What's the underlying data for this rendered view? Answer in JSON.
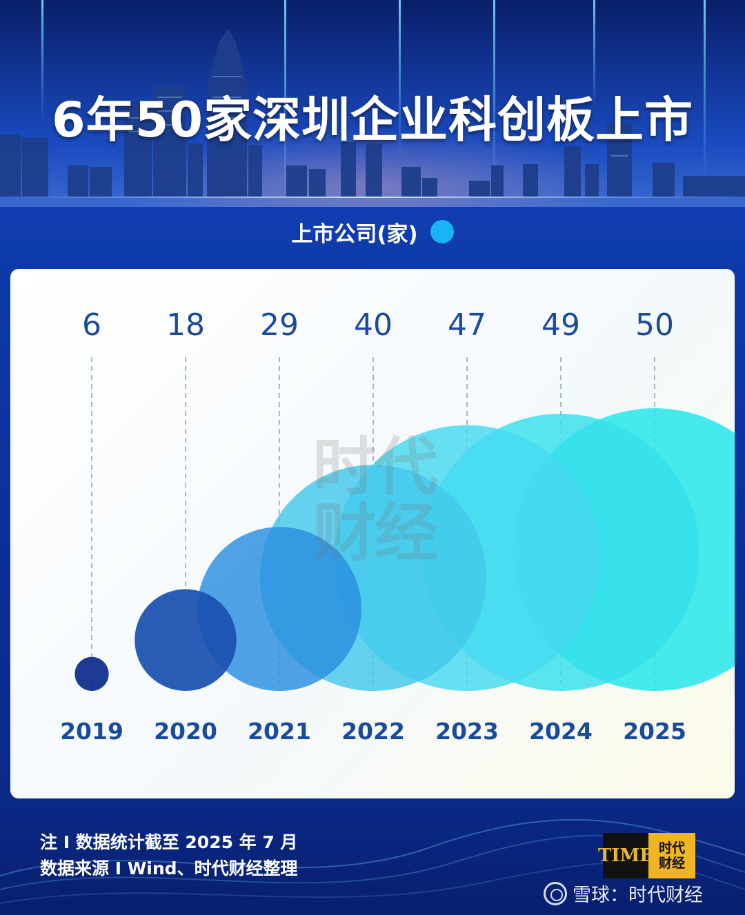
{
  "title": "6年50家深圳企业科创板上市",
  "legend": {
    "label": "上市公司(家)",
    "dot_color": "#19b4f5"
  },
  "watermark": {
    "line1": "时代",
    "line2": "财经"
  },
  "chart_data": {
    "type": "bubble",
    "series": [
      {
        "name": "上市公司(家)",
        "values": [
          6,
          18,
          29,
          40,
          47,
          49,
          50
        ]
      }
    ],
    "categories": [
      "2019",
      "2020",
      "2021",
      "2022",
      "2023",
      "2024",
      "2025"
    ],
    "value_labels": [
      "6",
      "18",
      "29",
      "40",
      "47",
      "49",
      "50"
    ],
    "colors": [
      "#0a2a8a",
      "#1a4fb0",
      "#2a8ddf",
      "#43c8ec",
      "#47d9f0",
      "#36e0ec",
      "#1fe6ea"
    ]
  },
  "footer": {
    "note": "注 I  数据统计截至 2025 年 7 月",
    "source": "数据来源 I Wind、时代财经整理"
  },
  "logo": {
    "left": "TIME",
    "right_line1": "时代",
    "right_line2": "财经"
  },
  "xueqiu": "雪球：时代财经"
}
